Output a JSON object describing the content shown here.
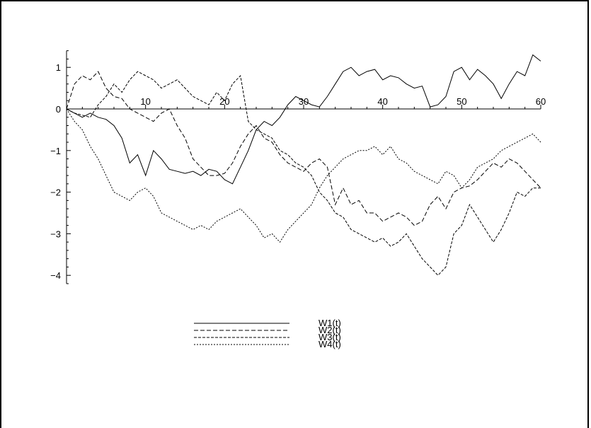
{
  "chart_data": {
    "type": "line",
    "title": "",
    "xlabel": "",
    "ylabel": "",
    "xlim": [
      0,
      60
    ],
    "ylim": [
      -4.2,
      1.4
    ],
    "xticks": [
      10,
      20,
      30,
      40,
      50,
      60
    ],
    "yticks": [
      1,
      0,
      -1,
      -2,
      -3,
      -4
    ],
    "grid": false,
    "legend": "below",
    "series": [
      {
        "name": "W1(t)",
        "style": "solid",
        "x": [
          0,
          1,
          2,
          3,
          4,
          5,
          6,
          7,
          8,
          9,
          10,
          11,
          12,
          13,
          14,
          15,
          16,
          17,
          18,
          19,
          20,
          21,
          22,
          23,
          24,
          25,
          26,
          27,
          28,
          29,
          30,
          31,
          32,
          33,
          34,
          35,
          36,
          37,
          38,
          39,
          40,
          41,
          42,
          43,
          44,
          45,
          46,
          47,
          48,
          49,
          50,
          51,
          52,
          53,
          54,
          55,
          56,
          57,
          58,
          59,
          60
        ],
        "y": [
          0,
          -0.1,
          -0.2,
          -0.1,
          -0.2,
          -0.25,
          -0.4,
          -0.7,
          -1.3,
          -1.1,
          -1.6,
          -1.0,
          -1.2,
          -1.45,
          -1.5,
          -1.55,
          -1.5,
          -1.6,
          -1.45,
          -1.5,
          -1.7,
          -1.8,
          -1.4,
          -1.0,
          -0.5,
          -0.3,
          -0.4,
          -0.2,
          0.1,
          0.3,
          0.2,
          0.1,
          0.05,
          0.3,
          0.6,
          0.9,
          1.0,
          0.8,
          0.9,
          0.95,
          0.7,
          0.8,
          0.75,
          0.6,
          0.5,
          0.55,
          0.05,
          0.1,
          0.3,
          0.9,
          1.0,
          0.7,
          0.95,
          0.8,
          0.6,
          0.25,
          0.6,
          0.9,
          0.8,
          1.3,
          1.15
        ]
      },
      {
        "name": "W2(t)",
        "style": "long-dash",
        "x": [
          0,
          1,
          2,
          3,
          4,
          5,
          6,
          7,
          8,
          9,
          10,
          11,
          12,
          13,
          14,
          15,
          16,
          17,
          18,
          19,
          20,
          21,
          22,
          23,
          24,
          25,
          26,
          27,
          28,
          29,
          30,
          31,
          32,
          33,
          34,
          35,
          36,
          37,
          38,
          39,
          40,
          41,
          42,
          43,
          44,
          45,
          46,
          47,
          48,
          49,
          50,
          51,
          52,
          53,
          54,
          55,
          56,
          57,
          58,
          59,
          60
        ],
        "y": [
          0,
          0.6,
          0.8,
          0.7,
          0.9,
          0.5,
          0.3,
          0.25,
          0.0,
          -0.1,
          -0.2,
          -0.3,
          -0.1,
          0.0,
          -0.4,
          -0.7,
          -1.2,
          -1.4,
          -1.6,
          -1.6,
          -1.55,
          -1.3,
          -0.9,
          -0.6,
          -0.4,
          -0.7,
          -0.8,
          -1.1,
          -1.3,
          -1.4,
          -1.5,
          -1.3,
          -1.2,
          -1.4,
          -2.3,
          -1.9,
          -2.3,
          -2.2,
          -2.5,
          -2.5,
          -2.7,
          -2.6,
          -2.5,
          -2.6,
          -2.8,
          -2.7,
          -2.3,
          -2.1,
          -2.4,
          -2.0,
          -1.9,
          -1.85,
          -1.7,
          -1.5,
          -1.3,
          -1.4,
          -1.2,
          -1.3,
          -1.5,
          -1.7,
          -1.9
        ]
      },
      {
        "name": "W3(t)",
        "style": "dash",
        "x": [
          0,
          1,
          2,
          3,
          4,
          5,
          6,
          7,
          8,
          9,
          10,
          11,
          12,
          13,
          14,
          15,
          16,
          17,
          18,
          19,
          20,
          21,
          22,
          23,
          24,
          25,
          26,
          27,
          28,
          29,
          30,
          31,
          32,
          33,
          34,
          35,
          36,
          37,
          38,
          39,
          40,
          41,
          42,
          43,
          44,
          45,
          46,
          47,
          48,
          49,
          50,
          51,
          52,
          53,
          54,
          55,
          56,
          57,
          58,
          59,
          60
        ],
        "y": [
          0,
          -0.1,
          -0.15,
          -0.2,
          0.1,
          0.3,
          0.6,
          0.4,
          0.7,
          0.9,
          0.8,
          0.7,
          0.5,
          0.6,
          0.7,
          0.5,
          0.3,
          0.2,
          0.1,
          0.4,
          0.2,
          0.6,
          0.8,
          -0.3,
          -0.5,
          -0.6,
          -0.7,
          -1.0,
          -1.1,
          -1.3,
          -1.4,
          -1.6,
          -2.0,
          -2.2,
          -2.5,
          -2.6,
          -2.9,
          -3.0,
          -3.1,
          -3.2,
          -3.1,
          -3.3,
          -3.2,
          -3.0,
          -3.3,
          -3.6,
          -3.8,
          -4.0,
          -3.8,
          -3.0,
          -2.8,
          -2.3,
          -2.6,
          -2.9,
          -3.2,
          -2.9,
          -2.5,
          -2.0,
          -2.1,
          -1.9,
          -1.9
        ]
      },
      {
        "name": "W4(t)",
        "style": "short-dash",
        "x": [
          0,
          1,
          2,
          3,
          4,
          5,
          6,
          7,
          8,
          9,
          10,
          11,
          12,
          13,
          14,
          15,
          16,
          17,
          18,
          19,
          20,
          21,
          22,
          23,
          24,
          25,
          26,
          27,
          28,
          29,
          30,
          31,
          32,
          33,
          34,
          35,
          36,
          37,
          38,
          39,
          40,
          41,
          42,
          43,
          44,
          45,
          46,
          47,
          48,
          49,
          50,
          51,
          52,
          53,
          54,
          55,
          56,
          57,
          58,
          59,
          60
        ],
        "y": [
          0,
          -0.3,
          -0.5,
          -0.9,
          -1.2,
          -1.6,
          -2.0,
          -2.1,
          -2.2,
          -2.0,
          -1.9,
          -2.1,
          -2.5,
          -2.6,
          -2.7,
          -2.8,
          -2.9,
          -2.8,
          -2.9,
          -2.7,
          -2.6,
          -2.5,
          -2.4,
          -2.6,
          -2.8,
          -3.1,
          -3.0,
          -3.2,
          -2.9,
          -2.7,
          -2.5,
          -2.3,
          -1.9,
          -1.6,
          -1.4,
          -1.2,
          -1.1,
          -1.0,
          -1.0,
          -0.9,
          -1.1,
          -0.9,
          -1.2,
          -1.3,
          -1.5,
          -1.6,
          -1.7,
          -1.8,
          -1.5,
          -1.6,
          -1.9,
          -1.7,
          -1.4,
          -1.3,
          -1.2,
          -1.0,
          -0.9,
          -0.8,
          -0.7,
          -0.6,
          -0.8
        ]
      }
    ]
  }
}
